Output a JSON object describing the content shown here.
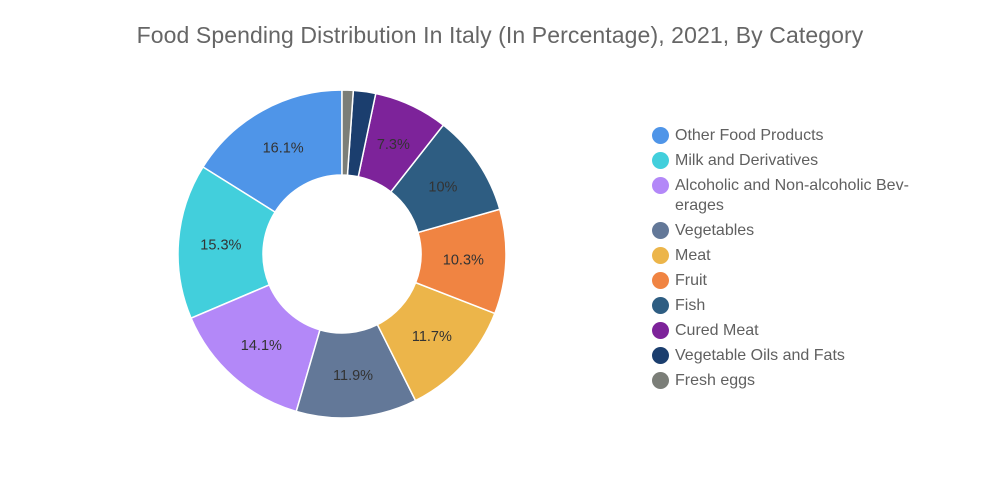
{
  "chart_data": {
    "type": "pie",
    "donut": true,
    "title": "Food Spending Distribution In Italy (In Percentage), 2021, By Category",
    "categories": [
      "Other Food Products",
      "Milk and Derivatives",
      "Alcoholic and Non-alcoholic Beverages",
      "Vegetables",
      "Meat",
      "Fruit",
      "Fish",
      "Cured Meat",
      "Vegetable Oils and Fats",
      "Fresh eggs"
    ],
    "legend_labels": [
      "Other Food Products",
      "Milk and Derivatives",
      "Alcoholic and Non-alcoholic Bev-erages",
      "Vegetables",
      "Meat",
      "Fruit",
      "Fish",
      "Cured Meat",
      "Vegetable Oils and Fats",
      "Fresh eggs"
    ],
    "values": [
      16.1,
      15.3,
      14.1,
      11.9,
      11.7,
      10.3,
      10,
      7.3,
      2.2,
      1.1
    ],
    "value_labels": [
      "16.1%",
      "15.3%",
      "14.1%",
      "11.9%",
      "11.7%",
      "10.3%",
      "10%",
      "7.3%",
      "",
      ""
    ],
    "colors": [
      "#4f95e8",
      "#42cfdc",
      "#b388f8",
      "#637898",
      "#ecb54a",
      "#f08442",
      "#2e5d82",
      "#7d239a",
      "#1b3e6e",
      "#7b7e78"
    ],
    "legend_position": "right"
  }
}
